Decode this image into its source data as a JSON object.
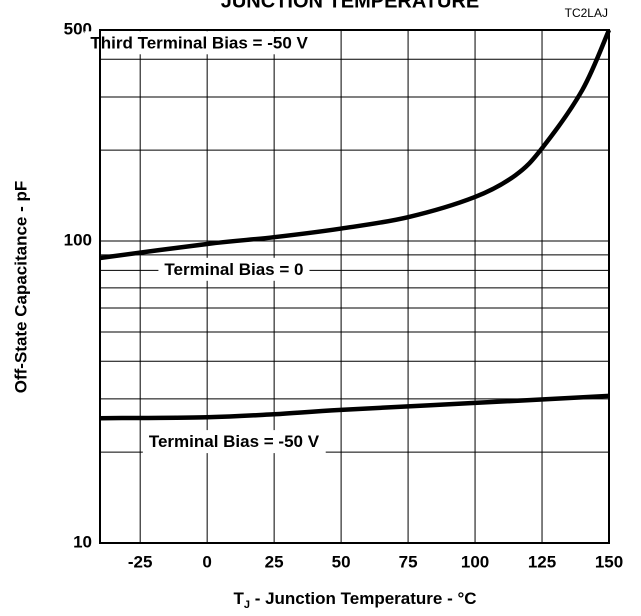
{
  "chart_data": {
    "type": "line",
    "title": "JUNCTION TEMPERATURE",
    "code": "TC2LAJ",
    "x_label": {
      "main": "T",
      "sub": "J",
      "rest": " - Junction Temperature - °C"
    },
    "y_label": "Off-State Capacitance - pF",
    "log_y": true,
    "xlim": [
      -40,
      150
    ],
    "ylim": [
      10,
      500
    ],
    "xticks": [
      -25,
      0,
      25,
      50,
      75,
      100,
      125,
      150
    ],
    "yticks": [
      10,
      100,
      500
    ],
    "ygrid": [
      20,
      30,
      40,
      50,
      60,
      70,
      80,
      90,
      200,
      300,
      400
    ],
    "grid": true,
    "color": "#000000",
    "series": [
      {
        "x": [
          -40,
          0,
          25,
          50,
          75,
          100,
          115,
          125,
          140,
          150
        ],
        "values": [
          87.9,
          97.8,
          103,
          110,
          120,
          140,
          165,
          203,
          316,
          500
        ]
      },
      {
        "x": [
          -40,
          0,
          25,
          50,
          100,
          150
        ],
        "values": [
          25.9,
          26.1,
          26.7,
          27.6,
          29.1,
          30.7
        ]
      }
    ],
    "annotations": [
      {
        "text": "Third Terminal Bias = -50 V",
        "x": -3,
        "y": 450
      },
      {
        "text": "Terminal Bias = 0",
        "x": 10,
        "y": 80
      },
      {
        "text": "Terminal Bias = -50 V",
        "x": 10,
        "y": 21.5
      }
    ]
  }
}
